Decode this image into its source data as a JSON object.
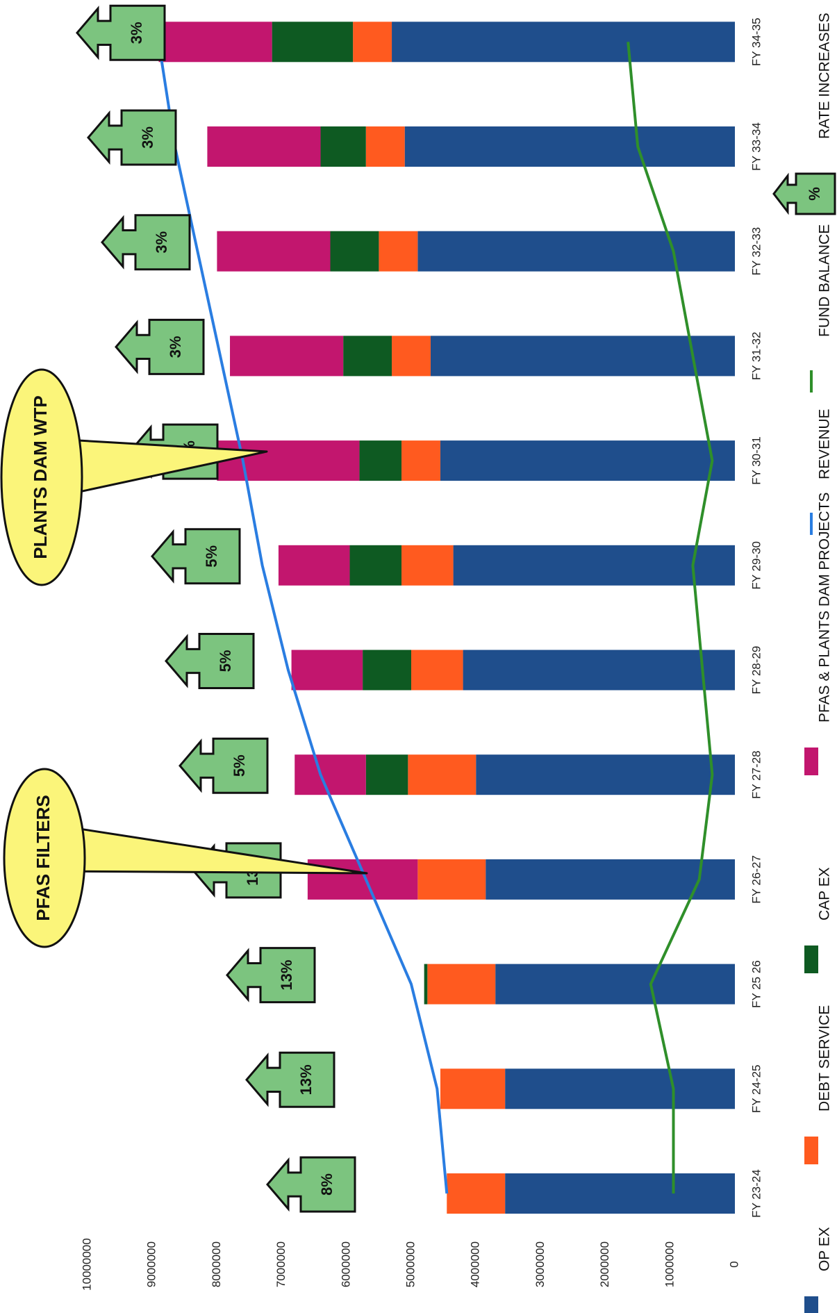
{
  "chart_data": {
    "type": "bar",
    "stacked": true,
    "orientation": "horizontal",
    "categories": [
      "FY 23-24",
      "FY 24-25",
      "FY 25 26",
      "FY 26-27",
      "FY 27-28",
      "FY 28-29",
      "FY 29-30",
      "FY 30-31",
      "FY 31-32",
      "FY 32-33",
      "FY 33-34",
      "FY 34-35"
    ],
    "xlim": [
      0,
      10000000
    ],
    "ticks": [
      "0",
      "1000000",
      "2000000",
      "3000000",
      "4000000",
      "5000000",
      "6000000",
      "7000000",
      "8000000",
      "9000000",
      "10000000"
    ],
    "series": [
      {
        "name": "OP EX",
        "color": "#1f4e8c",
        "values": [
          3550000,
          3550000,
          3700000,
          3850000,
          4000000,
          4200000,
          4350000,
          4550000,
          4700000,
          4900000,
          5100000,
          5300000
        ]
      },
      {
        "name": "DEBT SERVICE",
        "color": "#ff5a1f",
        "values": [
          900000,
          1000000,
          1050000,
          1050000,
          1050000,
          800000,
          800000,
          600000,
          600000,
          600000,
          600000,
          600000
        ]
      },
      {
        "name": "CAP EX",
        "color": "#0e5a22",
        "values": [
          0,
          0,
          50000,
          0,
          650000,
          750000,
          800000,
          650000,
          750000,
          750000,
          700000,
          1250000
        ]
      },
      {
        "name": "PFAS & PLANTS DAM PROJECTS",
        "color": "#c2166e",
        "values": [
          0,
          0,
          0,
          1700000,
          1100000,
          1100000,
          1100000,
          2200000,
          1750000,
          1750000,
          1750000,
          1750000
        ]
      }
    ],
    "lines": [
      {
        "name": "REVENUE",
        "color": "#2a7de1",
        "values": [
          4450000,
          4600000,
          5000000,
          5700000,
          6400000,
          6900000,
          7300000,
          7600000,
          7950000,
          8300000,
          8650000,
          8900000
        ]
      },
      {
        "name": "FUND BALANCE",
        "color": "#2f8f2a",
        "values": [
          950000,
          950000,
          1300000,
          550000,
          350000,
          500000,
          650000,
          350000,
          650000,
          950000,
          1500000,
          1650000
        ]
      }
    ],
    "rate_increases": [
      "8%",
      "13%",
      "13%",
      "13%",
      "5%",
      "5%",
      "5%",
      "5%",
      "3%",
      "3%",
      "3%",
      "3%"
    ],
    "annotations": [
      {
        "text": "PFAS FILTERS",
        "category": "FY 26-27"
      },
      {
        "text": "PLANTS DAM WTP",
        "category": "FY 30-31"
      }
    ],
    "legend": {
      "placement": "bottom",
      "items": [
        {
          "name": "OP EX",
          "color": "#1f4e8c",
          "kind": "box"
        },
        {
          "name": "DEBT SERVICE",
          "color": "#ff5a1f",
          "kind": "box"
        },
        {
          "name": "CAP EX",
          "color": "#0e5a22",
          "kind": "box"
        },
        {
          "name": "PFAS & PLANTS DAM PROJECTS",
          "color": "#c2166e",
          "kind": "box"
        },
        {
          "name": "REVENUE",
          "color": "#2a7de1",
          "kind": "line"
        },
        {
          "name": "FUND BALANCE",
          "color": "#2f8f2a",
          "kind": "line"
        },
        {
          "name": "RATE INCREASES",
          "color": "#7cc47f",
          "kind": "badge",
          "symbol": "%"
        }
      ]
    },
    "colors": {
      "badge_fill": "#7cc47f",
      "callout_fill": "#fbf57a"
    }
  }
}
